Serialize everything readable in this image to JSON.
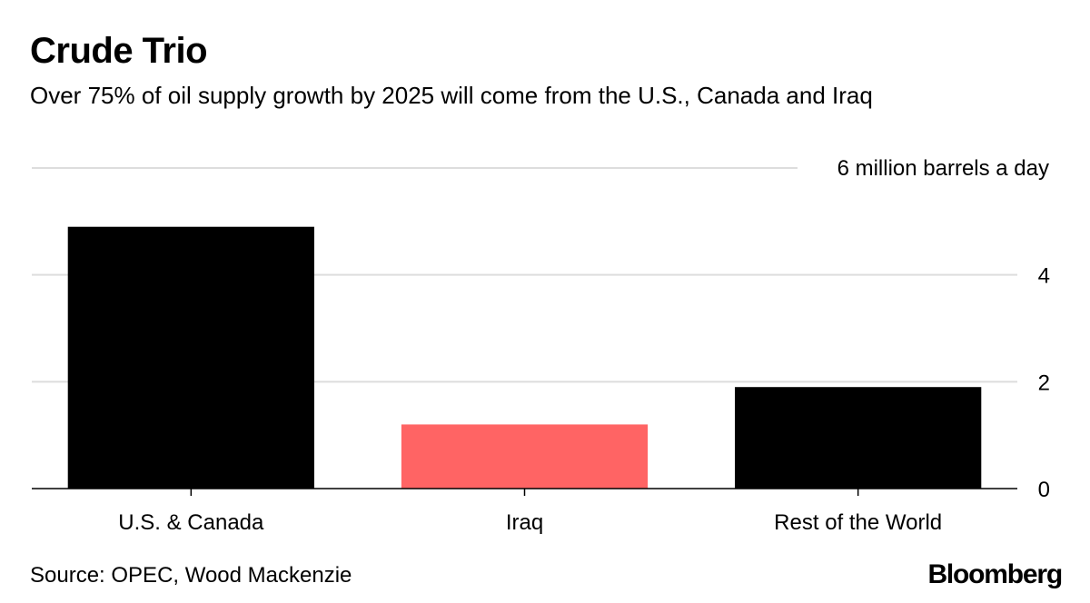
{
  "title": "Crude Trio",
  "subtitle": "Over 75% of oil supply growth by 2025 will come from the U.S., Canada and Iraq",
  "source": "Source: OPEC, Wood Mackenzie",
  "logo": "Bloomberg",
  "chart_data": {
    "type": "bar",
    "categories": [
      "U.S. & Canada",
      "Iraq",
      "Rest of the World"
    ],
    "values": [
      4.9,
      1.2,
      1.9
    ],
    "colors": [
      "#000000",
      "#ff6464",
      "#000000"
    ],
    "ylim": [
      0,
      6
    ],
    "yticks": [
      0,
      2,
      4
    ],
    "top_tick_label": "6 million barrels a day",
    "y_axis_side": "right",
    "grid": true,
    "gridline_color": "#dddddd"
  }
}
